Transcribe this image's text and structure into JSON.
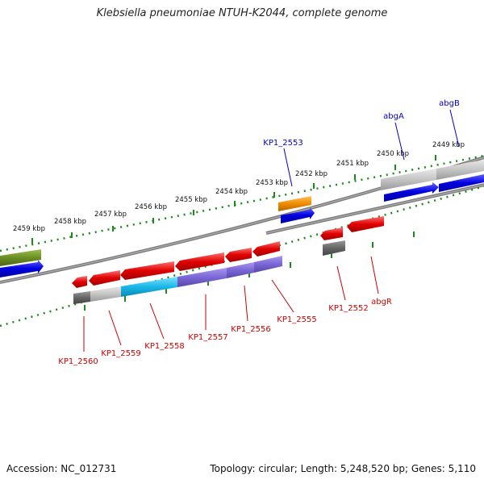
{
  "title": "Klebsiella pneumoniae NTUH-K2044, complete genome",
  "footer": {
    "accession": "Accession: NC_012731",
    "stats": "Topology: circular; Length: 5,248,520 bp; Genes: 5,110"
  },
  "ruler_ticks": [
    "2449 kbp",
    "2450 kbp",
    "2451 kbp",
    "2452 kbp",
    "2453 kbp",
    "2454 kbp",
    "2455 kbp",
    "2456 kbp",
    "2457 kbp",
    "2458 kbp",
    "2459 kbp"
  ],
  "gene_labels_top": [
    "abgB",
    "abgA",
    "KP1_2553"
  ],
  "gene_labels_bottom": [
    "KP1_2552",
    "abgR",
    "KP1_2555",
    "KP1_2556",
    "KP1_2557",
    "KP1_2558",
    "KP1_2559",
    "KP1_2560"
  ],
  "colors": {
    "forward_label": "#0000cc",
    "reverse_label": "#cc0000",
    "ruler": "#1a8a1a",
    "backbone": "#888888",
    "gene_red": "#e00000",
    "gene_blue": "#0000e0",
    "gene_orange": "#f08c00",
    "gene_purple": "#7a66d6",
    "gene_cyan": "#19b8e8",
    "gene_gray": "#bdbdbd",
    "gene_darkgray": "#666666",
    "gene_olive": "#6b8e23"
  }
}
